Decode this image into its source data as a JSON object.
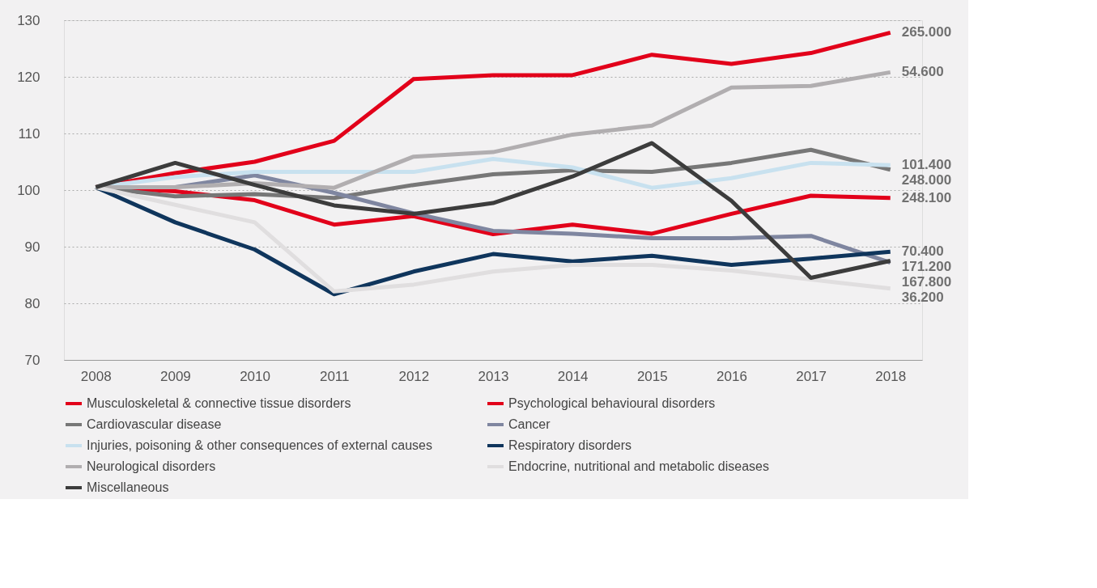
{
  "chart_data": {
    "type": "line",
    "categories": [
      "2008",
      "2009",
      "2010",
      "2011",
      "2012",
      "2013",
      "2014",
      "2015",
      "2016",
      "2017",
      "2018"
    ],
    "ylim": [
      70,
      130
    ],
    "yticks": [
      70,
      80,
      90,
      100,
      110,
      120,
      130
    ],
    "grid": "y",
    "legend": "bottom",
    "marker": "none",
    "line_style": "solid",
    "series": [
      {
        "name": "Musculoskeletal & connective tissue disorders",
        "color": "#e2001a",
        "values": [
          100.5,
          103,
          105,
          108.7,
          119.6,
          120.3,
          120.3,
          123.9,
          122.3,
          124.2,
          127.8
        ]
      },
      {
        "name": "Psychological behavioural disorders",
        "color": "#e2001a",
        "values": [
          100.5,
          99.8,
          98.2,
          93.9,
          95.4,
          92.2,
          93.9,
          92.3,
          95.8,
          99,
          98.6
        ]
      },
      {
        "name": "Cardiovascular disease",
        "color": "#777777",
        "values": [
          100.5,
          98.9,
          99.3,
          98.6,
          100.9,
          102.8,
          103.5,
          103.2,
          104.8,
          107.1,
          103.6
        ]
      },
      {
        "name": "Cancer",
        "color": "#7f86a0",
        "values": [
          100.5,
          100.5,
          102.6,
          99.5,
          95.9,
          92.8,
          92.3,
          91.5,
          91.5,
          91.9,
          87.2
        ]
      },
      {
        "name": "Injuries, poisoning & other consequences of external causes",
        "color": "#c8e1ef",
        "values": [
          100.5,
          102.3,
          103.2,
          103.2,
          103.2,
          105.5,
          104,
          100.4,
          102.1,
          104.8,
          104.4
        ]
      },
      {
        "name": "Respiratory disorders",
        "color": "#0f355c",
        "values": [
          100.5,
          94.3,
          89.5,
          81.6,
          85.6,
          88.7,
          87.4,
          88.4,
          86.8,
          87.9,
          89.1
        ]
      },
      {
        "name": "Neurological disorders",
        "color": "#b1aeb0",
        "values": [
          100.5,
          100.5,
          101.2,
          100.4,
          105.9,
          106.7,
          109.8,
          111.4,
          118.1,
          118.4,
          120.8
        ]
      },
      {
        "name": "Endocrine, nutritional and metabolic diseases",
        "color": "#e0dedf",
        "values": [
          100.5,
          97.4,
          94.3,
          82.1,
          83.3,
          85.6,
          86.8,
          86.8,
          85.8,
          84.2,
          82.6
        ]
      },
      {
        "name": "Miscellaneous",
        "color": "#3c3c3c",
        "values": [
          100.5,
          104.8,
          100.9,
          97.3,
          95.8,
          97.7,
          102.4,
          108.3,
          98.1,
          84.5,
          87.5
        ]
      }
    ],
    "annotations": [
      {
        "text": "265.000",
        "x": "2018",
        "y": 127.8
      },
      {
        "text": "54.600",
        "x": "2018",
        "y": 120.8
      },
      {
        "text": "101.400",
        "x": "2018",
        "y": 104.4
      },
      {
        "text": "248.000",
        "x": "2018",
        "y": 103.6
      },
      {
        "text": "248.100",
        "x": "2018",
        "y": 98.6
      },
      {
        "text": "70.400",
        "x": "2018",
        "y": 89.1
      },
      {
        "text": "171.200",
        "x": "2018",
        "y": 87.2
      },
      {
        "text": "167.800",
        "x": "2018",
        "y": 87.5
      },
      {
        "text": "36.200",
        "x": "2018",
        "y": 82.6
      }
    ]
  }
}
